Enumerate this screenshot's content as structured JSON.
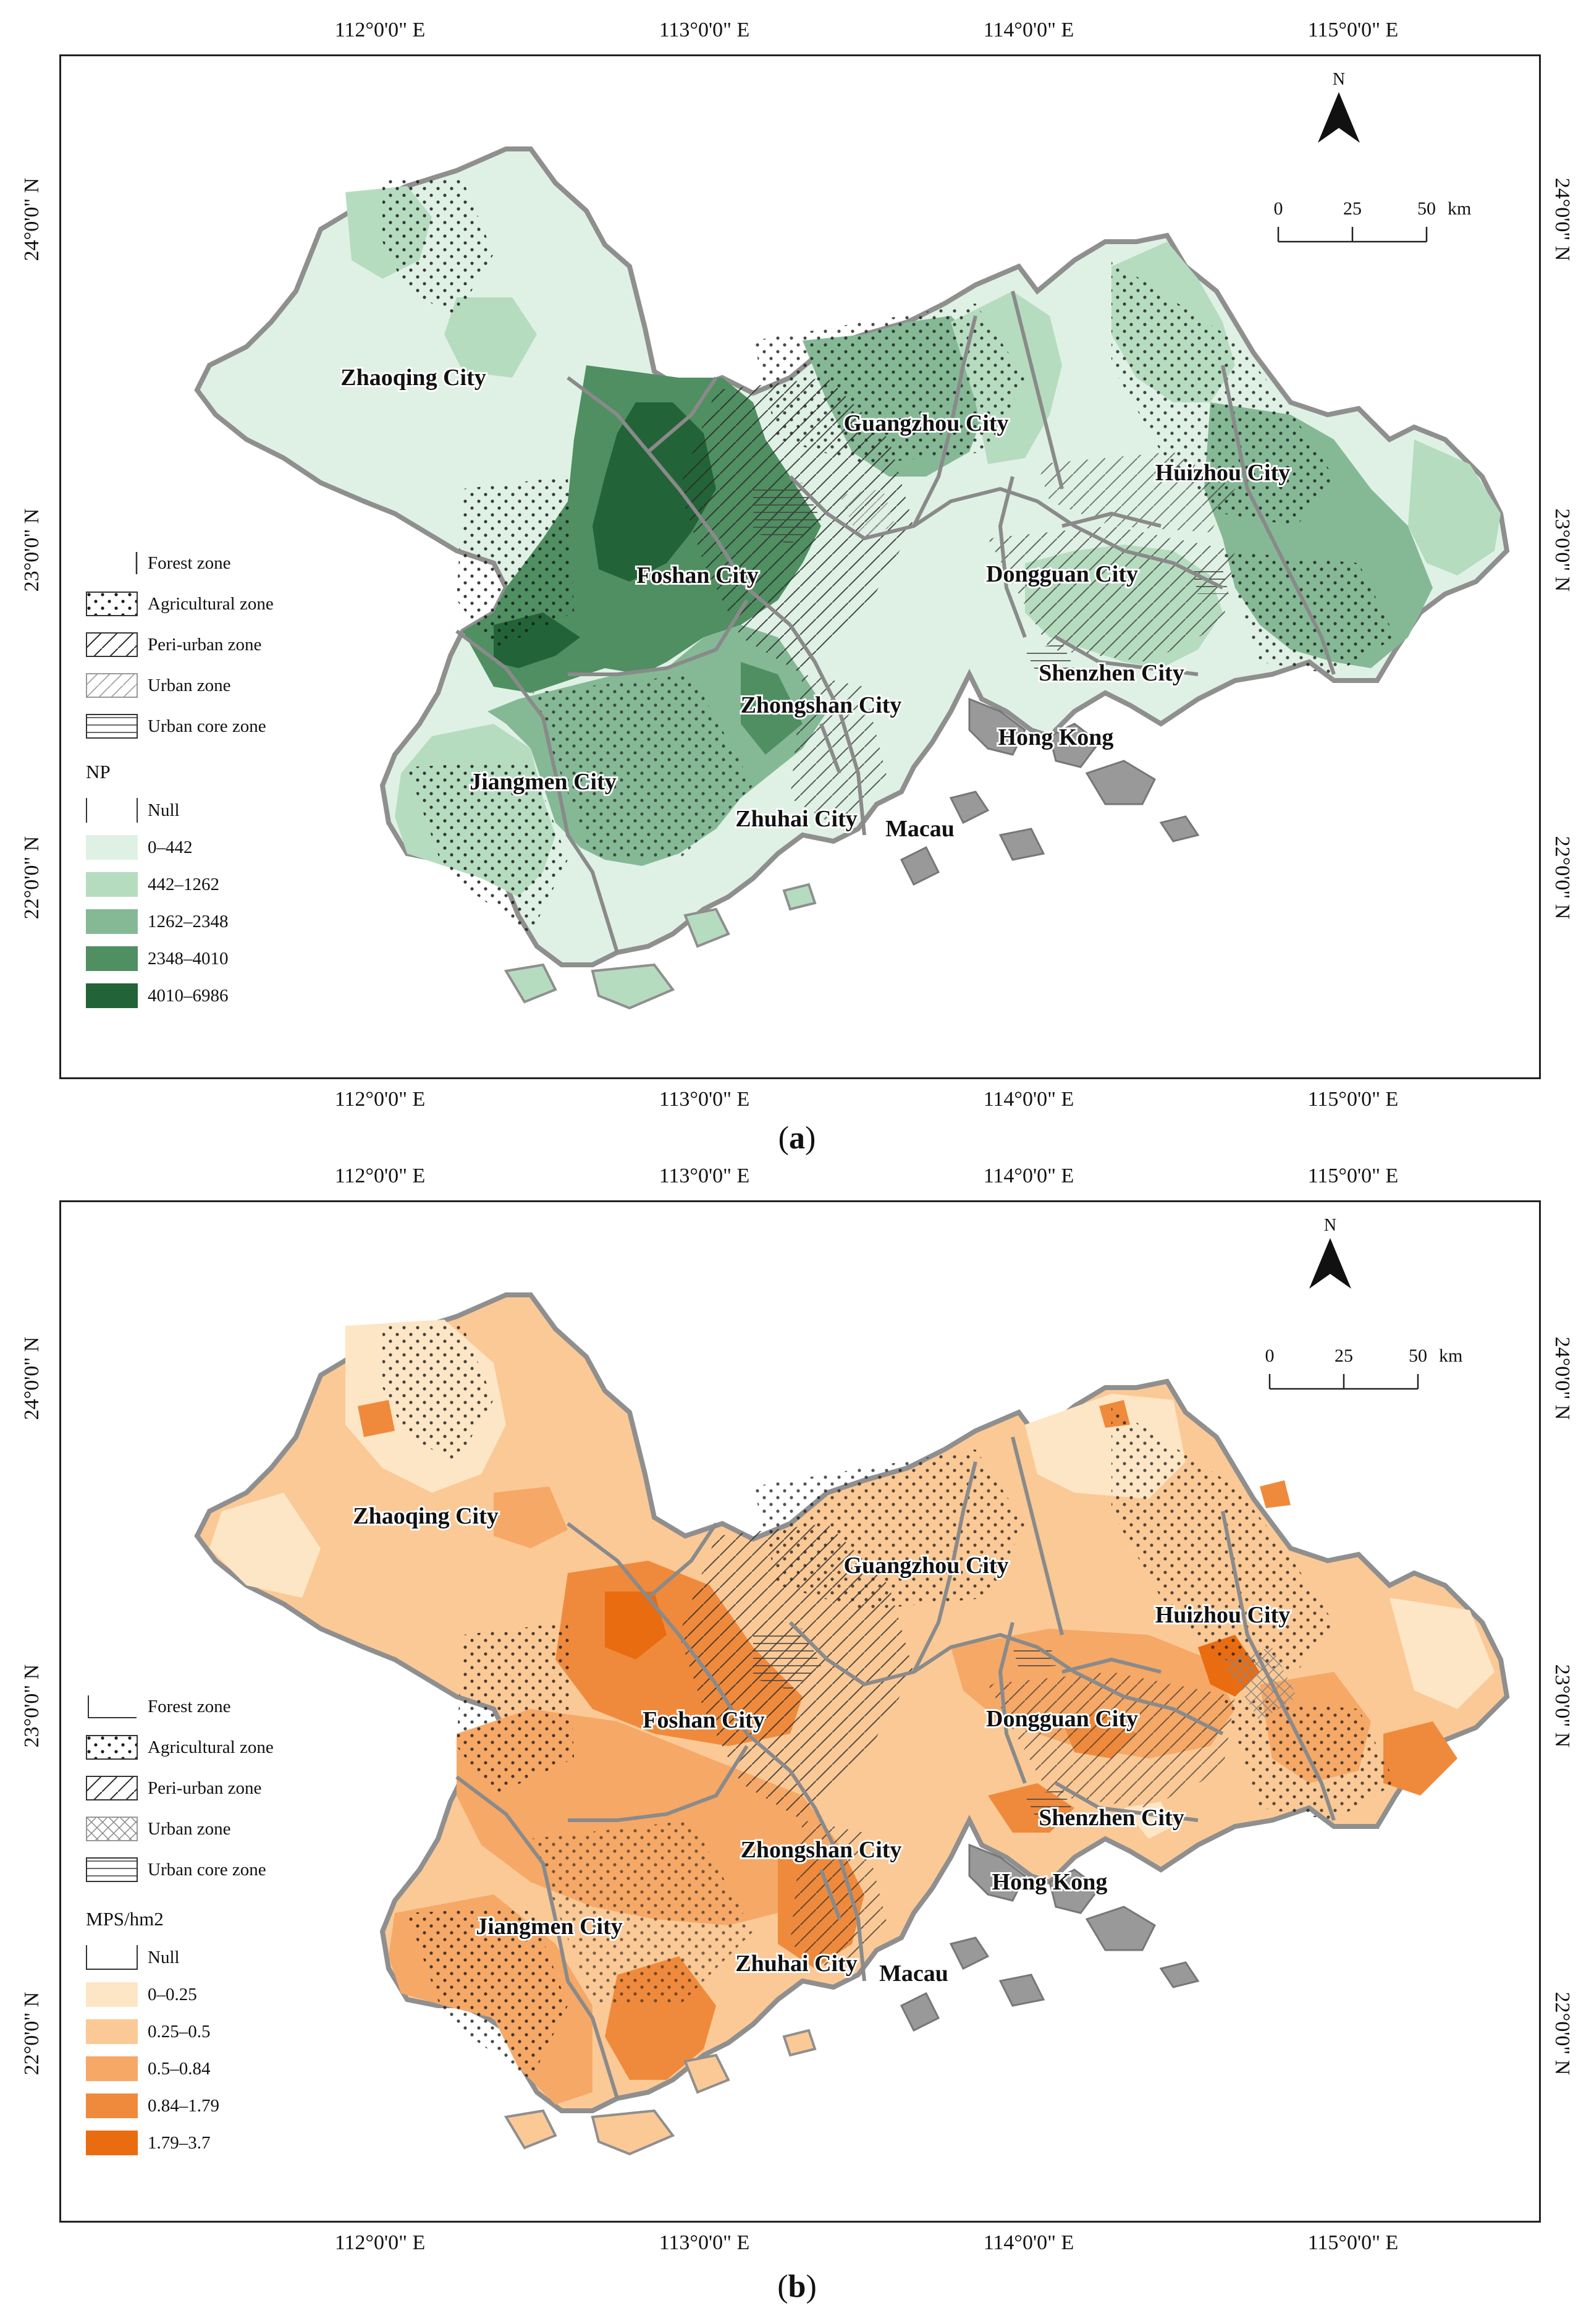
{
  "panels": [
    {
      "caption_open": "(",
      "caption_letter": "a",
      "caption_close": ")",
      "lon_ticks": [
        "112°0'0\" E",
        "113°0'0\" E",
        "114°0'0\" E",
        "115°0'0\" E"
      ],
      "lat_ticks": [
        "24°0'0\" N",
        "23°0'0\" N",
        "22°0'0\" N"
      ],
      "north_label": "N",
      "scale": {
        "ticks": [
          "0",
          "25",
          "50"
        ],
        "unit": "km"
      },
      "zone_legend": [
        "Forest zone",
        "Agricultural zone",
        "Peri-urban zone",
        "Urban zone",
        "Urban core zone"
      ],
      "class_legend_title": "NP",
      "class_legend": [
        {
          "label": "Null",
          "color": "#ffffff"
        },
        {
          "label": "0–442",
          "color": "#dff1e4"
        },
        {
          "label": "442–1262",
          "color": "#b6dcc0"
        },
        {
          "label": "1262–2348",
          "color": "#85b996"
        },
        {
          "label": "2348–4010",
          "color": "#4f8f61"
        },
        {
          "label": "4010–6986",
          "color": "#226437"
        }
      ],
      "cities": [
        "Zhaoqing City",
        "Guangzhou City",
        "Huizhou City",
        "Foshan City",
        "Dongguan City",
        "Shenzhen City",
        "Zhongshan City",
        "Hong Kong",
        "Jiangmen City",
        "Zhuhai City",
        "Macau"
      ]
    },
    {
      "caption_open": "(",
      "caption_letter": "b",
      "caption_close": ")",
      "lon_ticks": [
        "112°0'0\" E",
        "113°0'0\" E",
        "114°0'0\" E",
        "115°0'0\" E"
      ],
      "lat_ticks": [
        "24°0'0\" N",
        "23°0'0\" N",
        "22°0'0\" N"
      ],
      "north_label": "N",
      "scale": {
        "ticks": [
          "0",
          "25",
          "50"
        ],
        "unit": "km"
      },
      "zone_legend": [
        "Forest zone",
        "Agricultural zone",
        "Peri-urban zone",
        "Urban zone",
        "Urban core zone"
      ],
      "class_legend_title": "MPS/hm2",
      "class_legend": [
        {
          "label": "Null",
          "color": "#ffffff"
        },
        {
          "label": "0–0.25",
          "color": "#fde6c6"
        },
        {
          "label": "0.25–0.5",
          "color": "#fbc996"
        },
        {
          "label": "0.5–0.84",
          "color": "#f6a867"
        },
        {
          "label": "0.84–1.79",
          "color": "#ef8a3c"
        },
        {
          "label": "1.79–3.7",
          "color": "#ea6c10"
        }
      ],
      "cities": [
        "Zhaoqing City",
        "Guangzhou City",
        "Huizhou City",
        "Foshan City",
        "Dongguan City",
        "Shenzhen City",
        "Zhongshan City",
        "Hong Kong",
        "Jiangmen City",
        "Zhuhai City",
        "Macau"
      ]
    }
  ]
}
